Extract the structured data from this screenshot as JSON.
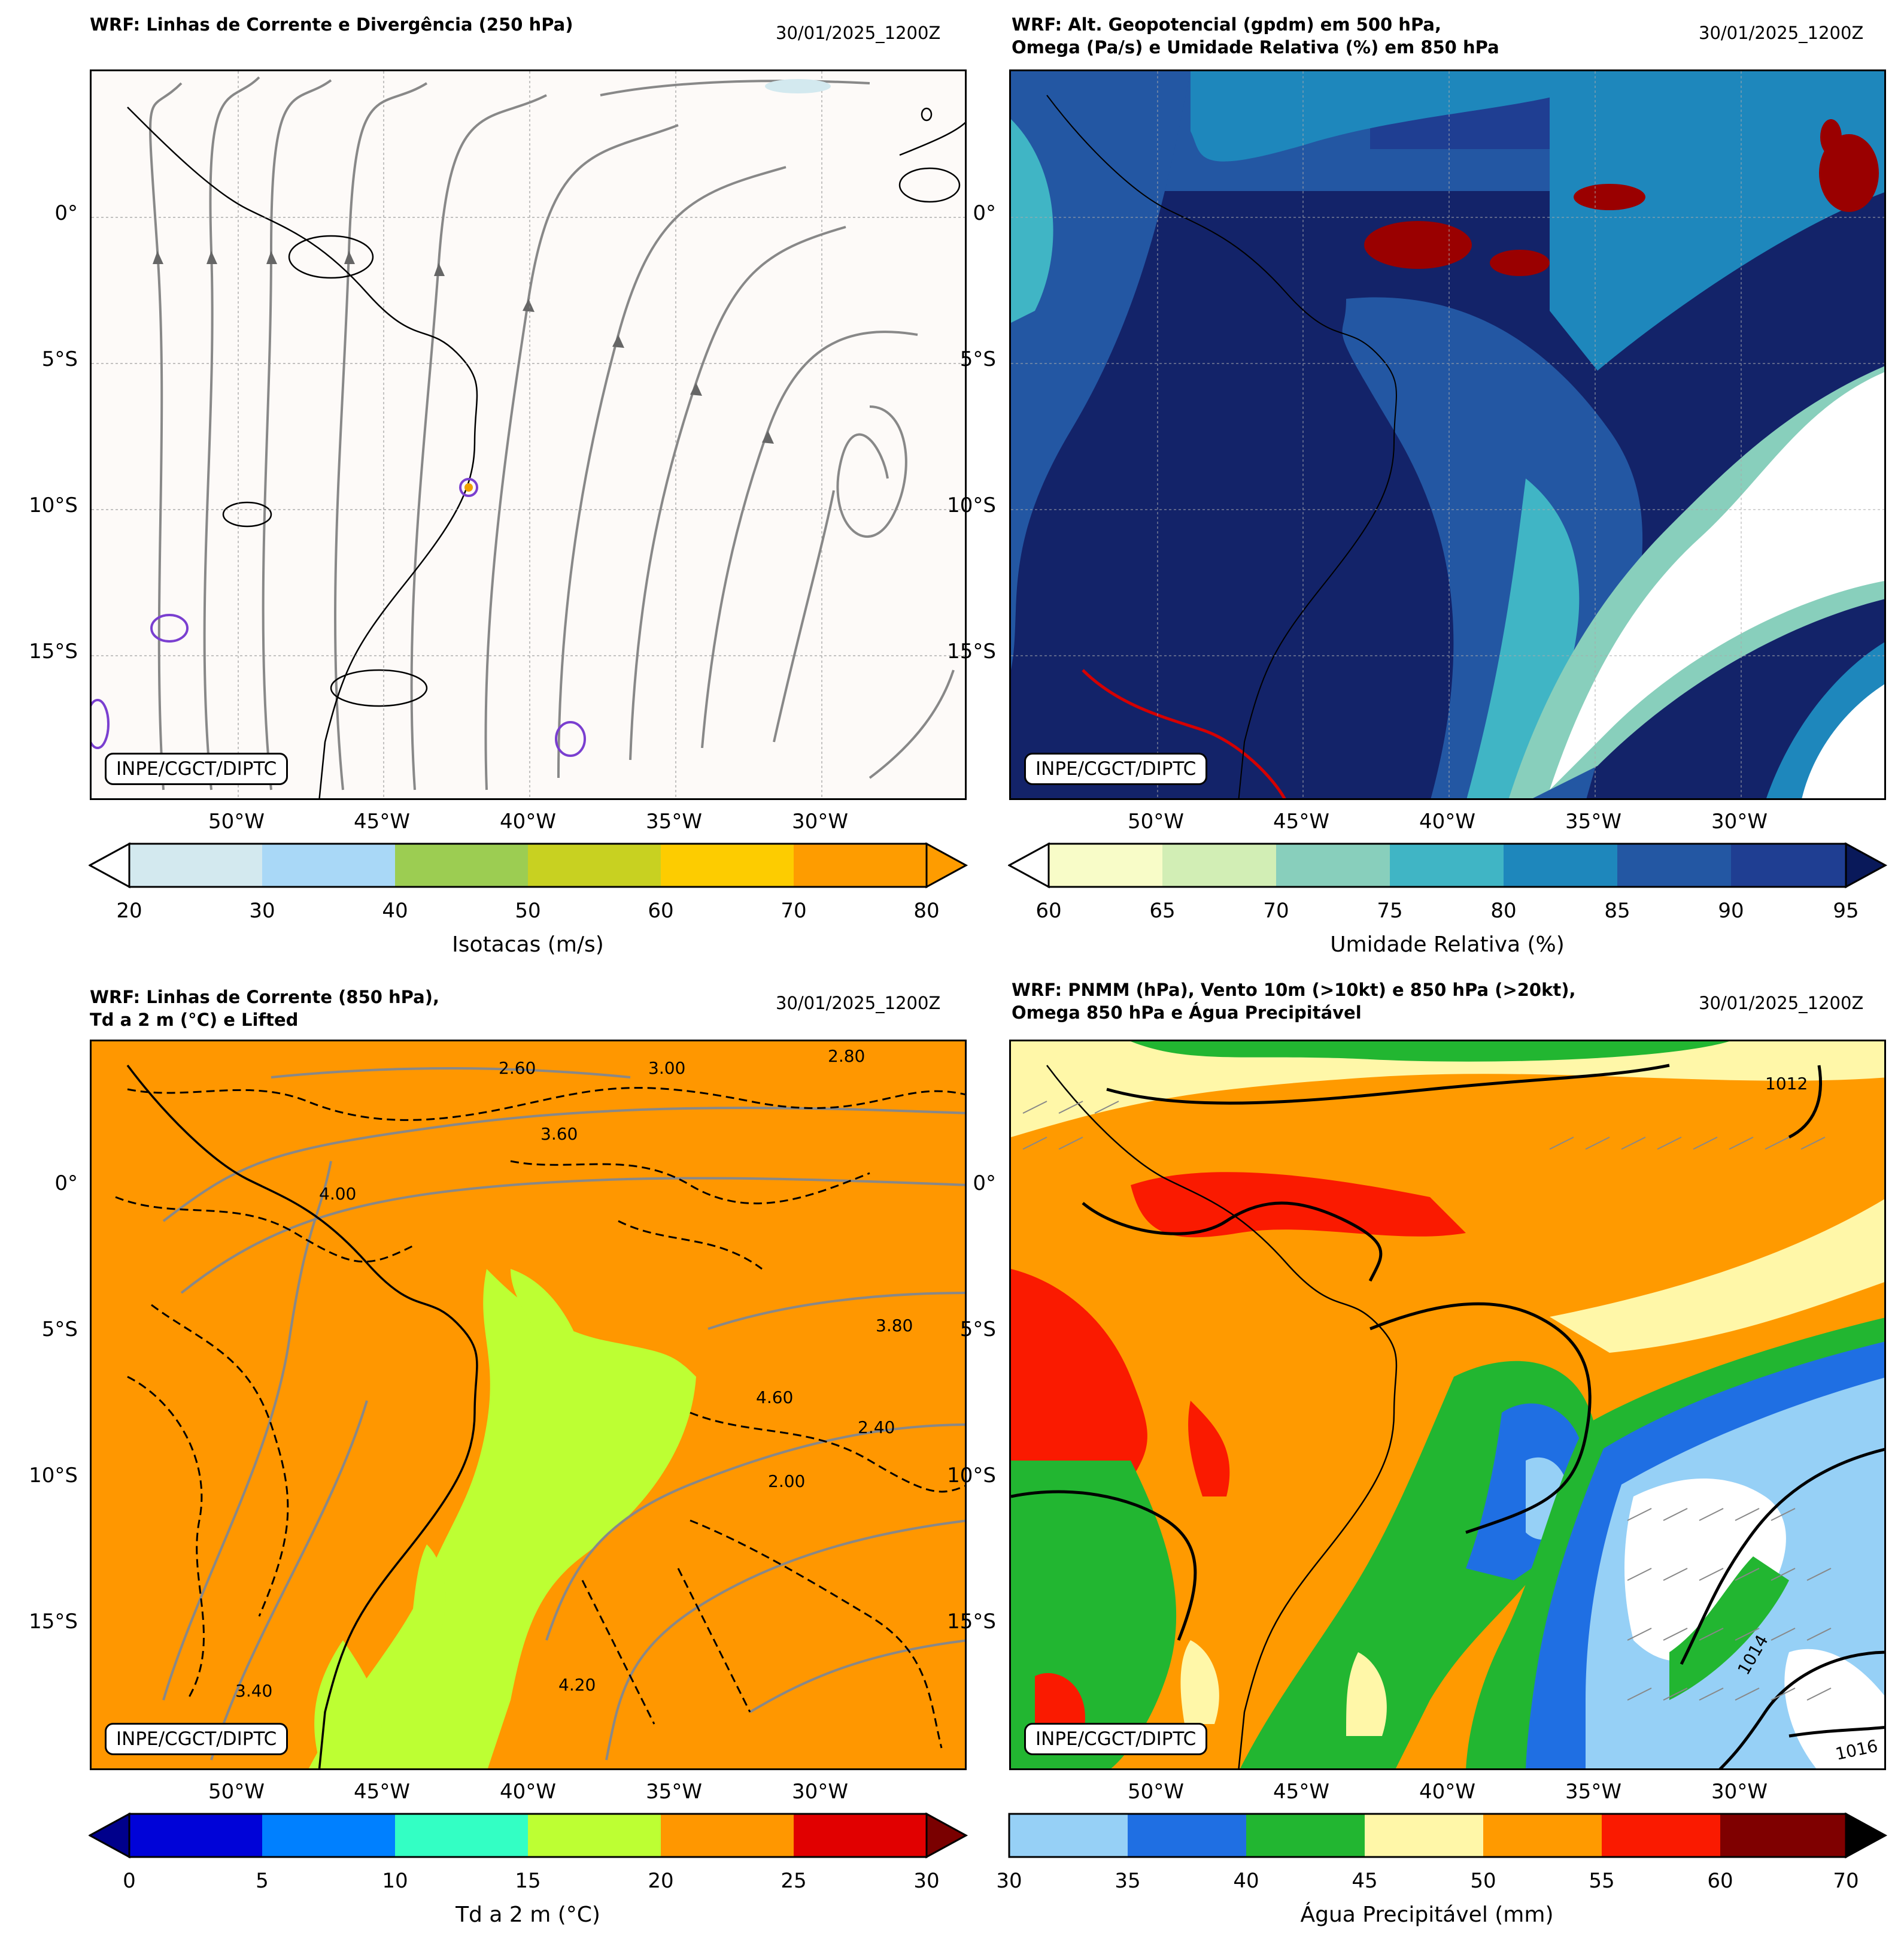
{
  "panels": [
    {
      "id": "p1",
      "title": "WRF: Linhas de Corrente e Divergência (250 hPa)",
      "date": "30/01/2025_1200Z",
      "credit": "INPE/CGCT/DIPTC",
      "background": "#fdfaf8",
      "colorbar": {
        "label": "Isotacas (m/s)",
        "ticks": [
          "20",
          "30",
          "40",
          "50",
          "60",
          "70",
          "80"
        ],
        "colors": [
          "#d3e9ef",
          "#a9d8f7",
          "#9ccd52",
          "#c8d121",
          "#fdcc00",
          "#fe9c00"
        ],
        "under_color": "#ffffff",
        "over_color": "#fe9c00"
      }
    },
    {
      "id": "p2",
      "title": "WRF: Alt. Geopotencial (gpdm) em 500 hPa,\nOmega (Pa/s) e Umidade Relativa (%) em 850 hPa",
      "date": "30/01/2025_1200Z",
      "credit": "INPE/CGCT/DIPTC",
      "background": "#132369",
      "colorbar": {
        "label": "Umidade Relativa (%)",
        "ticks": [
          "60",
          "65",
          "70",
          "75",
          "80",
          "85",
          "90",
          "95"
        ],
        "colors": [
          "#f8fcc8",
          "#d2eeb5",
          "#88cfbc",
          "#40b5c5",
          "#1e87bc",
          "#2357a3",
          "#1f3e92"
        ],
        "under_color": "#ffffff",
        "over_color": "#09195a"
      }
    },
    {
      "id": "p3",
      "title": "WRF: Linhas de Corrente (850 hPa),\nTd a 2 m (°C) e Lifted",
      "date": "30/01/2025_1200Z",
      "credit": "INPE/CGCT/DIPTC",
      "background": "#ff9700",
      "colorbar": {
        "label": "Td a 2 m (°C)",
        "ticks": [
          "0",
          "5",
          "10",
          "15",
          "20",
          "25",
          "30"
        ],
        "colors": [
          "#0003d8",
          "#0080ff",
          "#33ffc4",
          "#bdff33",
          "#ff9700",
          "#e10000"
        ],
        "under_color": "#00008b",
        "over_color": "#7a0000"
      }
    },
    {
      "id": "p4",
      "title": "WRF: PNMM (hPa), Vento 10m (>10kt) e 850 hPa (>20kt),\nOmega 850 hPa e Água Precipitável",
      "date": "30/01/2025_1200Z",
      "credit": "INPE/CGCT/DIPTC",
      "background": "#ff9a00",
      "colorbar": {
        "label": "Água Precipitável (mm)",
        "ticks": [
          "30",
          "35",
          "40",
          "45",
          "50",
          "55",
          "60",
          "70"
        ],
        "colors": [
          "#96d0f6",
          "#1f6fe3",
          "#22b631",
          "#fff7a8",
          "#ff9a00",
          "#fa1a00",
          "#7f0000"
        ],
        "under_color": "#96d0f6",
        "over_color": "#000000"
      }
    }
  ],
  "axes": {
    "lon_labels": [
      "50°W",
      "45°W",
      "40°W",
      "35°W",
      "30°W"
    ],
    "lat_labels": [
      "0°",
      "5°S",
      "10°S",
      "15°S"
    ]
  },
  "contour_labels_p3": [
    "4.00",
    "3.60",
    "2.80",
    "3.00",
    "2.60",
    "3.80",
    "4.60",
    "2.40",
    "2.00",
    "3.40",
    "4.20"
  ],
  "isobar_labels_p4": [
    "1012",
    "1014",
    "1016"
  ]
}
